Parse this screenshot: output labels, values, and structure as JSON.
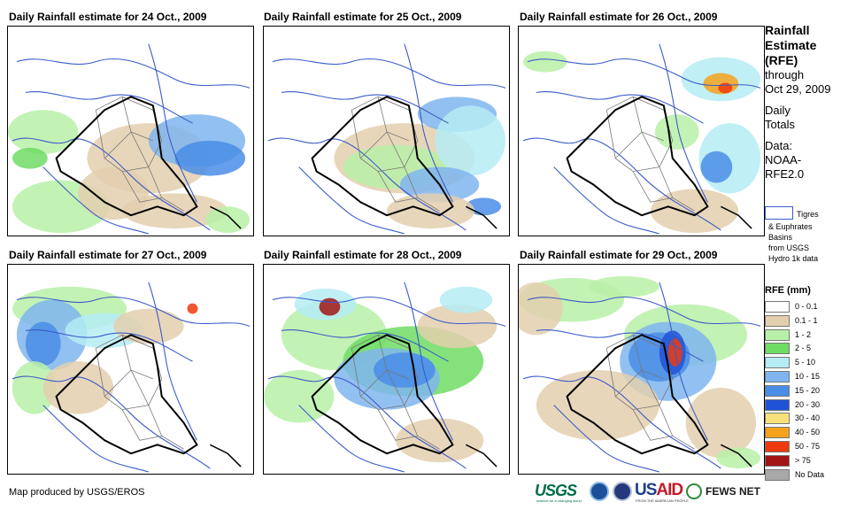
{
  "panels": [
    {
      "title": "Daily Rainfall estimate for 24 Oct., 2009"
    },
    {
      "title": "Daily Rainfall estimate for 25 Oct., 2009"
    },
    {
      "title": "Daily Rainfall estimate for 26 Oct., 2009"
    },
    {
      "title": "Daily Rainfall estimate for 27 Oct., 2009"
    },
    {
      "title": "Daily Rainfall estimate for 28 Oct., 2009"
    },
    {
      "title": "Daily Rainfall estimate for 29 Oct., 2009"
    }
  ],
  "legend": {
    "title_line1": "Rainfall",
    "title_line2": "Estimate",
    "title_line3": "(RFE)",
    "through": "through",
    "date": "Oct 29, 2009",
    "daily": "Daily",
    "totals": "Totals",
    "data_label": "Data:",
    "data_source_1": "NOAA-",
    "data_source_2": "RFE2.0",
    "basins_line1": "Tigres",
    "basins_line2": "& Euphrates",
    "basins_line3": "Basins",
    "basins_line4": "from USGS",
    "basins_line5": "Hydro 1k data",
    "basin_color": "#3b5bc8",
    "rfe_title": "RFE (mm)",
    "classes": [
      {
        "label": "0 - 0.1",
        "color": "#ffffff"
      },
      {
        "label": "0.1 - 1",
        "color": "#e3cfae"
      },
      {
        "label": "1 - 2",
        "color": "#b8f0a8"
      },
      {
        "label": "2 - 5",
        "color": "#6fdc64"
      },
      {
        "label": "5 - 10",
        "color": "#b5ecf4"
      },
      {
        "label": "10 - 15",
        "color": "#7fb5ee"
      },
      {
        "label": "15 - 20",
        "color": "#4a8de6"
      },
      {
        "label": "20 - 30",
        "color": "#2152d6"
      },
      {
        "label": "30 - 40",
        "color": "#f8e17a"
      },
      {
        "label": "40 - 50",
        "color": "#f4a21c"
      },
      {
        "label": "50 - 75",
        "color": "#ee3a0c"
      },
      {
        "label": "> 75",
        "color": "#a31515"
      },
      {
        "label": "No Data",
        "color": "#a8a8a8"
      }
    ]
  },
  "credit": "Map produced by USGS/EROS",
  "logos": {
    "usgs": "USGS",
    "usgs_tagline": "science for a changing world",
    "usaid_us": "US",
    "usaid_aid": "AID",
    "usaid_tagline": "FROM THE AMERICAN PEOPLE",
    "fews": "FEWS NET"
  }
}
